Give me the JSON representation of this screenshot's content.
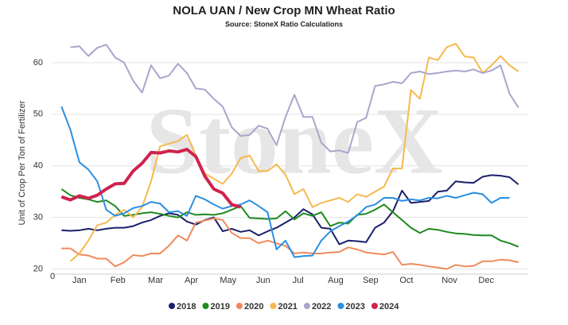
{
  "chart_data": {
    "type": "line",
    "title": "NOLA UAN / New Crop MN Wheat Ratio",
    "subtitle": "Source: StoneX Ratio Calculations",
    "watermark": "StoneX",
    "y_label": "Unit of Crop Per Ton of Fertilizer",
    "x": [
      1,
      2,
      3,
      4,
      5,
      6,
      7,
      8,
      9,
      10,
      11,
      12,
      13,
      14,
      15,
      16,
      17,
      18,
      19,
      20,
      21,
      22,
      23,
      24,
      25,
      26,
      27,
      28,
      29,
      30,
      31,
      32,
      33,
      34,
      35,
      36,
      37,
      38,
      39,
      40,
      41,
      42,
      43,
      44,
      45,
      46,
      47,
      48,
      49,
      50,
      51,
      52
    ],
    "xlim": [
      0,
      53
    ],
    "xticks": [
      0,
      {
        "value": 3,
        "label": "Jan"
      },
      {
        "value": 7.3,
        "label": "Feb"
      },
      {
        "value": 11.5,
        "label": "Mar"
      },
      {
        "value": 15.5,
        "label": "Apr"
      },
      {
        "value": 19.6,
        "label": "May"
      },
      {
        "value": 23.5,
        "label": "Jun"
      },
      {
        "value": 27.4,
        "label": "Jul"
      },
      {
        "value": 31.6,
        "label": "Aug"
      },
      {
        "value": 35.5,
        "label": "Sep"
      },
      {
        "value": 39.5,
        "label": "Oct"
      },
      {
        "value": 44.3,
        "label": "Nov"
      },
      {
        "value": 48.4,
        "label": "Dec"
      }
    ],
    "ylim": [
      19,
      66
    ],
    "yticks": [
      20,
      30,
      40,
      50,
      60
    ],
    "grid": true,
    "legend": "bottom",
    "series": [
      {
        "name": "2018",
        "color": "#1b1f6b",
        "width": 2,
        "values": [
          27.5,
          27.4,
          27.5,
          27.8,
          27.5,
          27.8,
          28,
          28,
          28.3,
          29,
          29.5,
          30.3,
          30.8,
          30.5,
          29.2,
          28.6,
          29.5,
          30,
          27.3,
          27.8,
          27.2,
          27.5,
          26.5,
          27.3,
          28,
          29,
          30,
          31.6,
          30.6,
          28,
          27.8,
          24.8,
          25.5,
          25.4,
          25.2,
          28,
          29,
          31.2,
          35.2,
          32.8,
          33,
          33.2,
          35,
          35.2,
          37,
          36.8,
          36.7,
          37.9,
          38.2,
          38.1,
          37.8,
          36.4
        ]
      },
      {
        "name": "2019",
        "color": "#1e8a1e",
        "width": 2,
        "values": [
          35.5,
          34.3,
          33.8,
          33.5,
          33,
          33.3,
          32.2,
          30.3,
          30.5,
          30.8,
          31,
          30.7,
          30.3,
          30,
          31,
          30.5,
          30.6,
          30.5,
          30.8,
          31.5,
          32.2,
          29.9,
          29.8,
          29.7,
          29.8,
          31.2,
          29.6,
          30.8,
          30.3,
          31,
          28.3,
          29,
          28.8,
          30.5,
          30.7,
          31.5,
          32.5,
          31,
          29.5,
          28,
          27,
          27.8,
          27.6,
          27.2,
          26.9,
          26.8,
          26.6,
          26.5,
          26.5,
          25.5,
          25,
          24.3
        ]
      },
      {
        "name": "2020",
        "color": "#f08a5d",
        "width": 2,
        "values": [
          24,
          24,
          22.8,
          22.6,
          22,
          22,
          20.5,
          21.3,
          22.7,
          22.5,
          23,
          23,
          24.5,
          26.5,
          25.5,
          29,
          29.4,
          29.8,
          29.5,
          27,
          26,
          26,
          25,
          25.5,
          25,
          24.5,
          23,
          23.2,
          23,
          23,
          23.2,
          23.3,
          24.2,
          23.8,
          23.2,
          23,
          22.8,
          23.3,
          20.8,
          21,
          20.8,
          20.5,
          20.3,
          20,
          20.8,
          20.5,
          20.6,
          21.5,
          21.5,
          21.8,
          21.7,
          21.3
        ]
      },
      {
        "name": "2021",
        "color": "#f5b94f",
        "width": 2,
        "values": [
          null,
          21.5,
          23,
          25.5,
          28.5,
          29,
          30.5,
          31.5,
          30,
          32,
          37,
          43.8,
          44.3,
          44.8,
          46,
          42,
          38.5,
          37.5,
          36.5,
          38.5,
          41.5,
          42,
          39,
          39,
          40.3,
          38.3,
          34.5,
          35.5,
          32,
          32.8,
          33.3,
          33.8,
          33,
          34.5,
          34,
          35,
          36,
          39.5,
          39.5,
          54.7,
          53,
          61,
          60.5,
          63,
          63.7,
          61.2,
          61,
          58,
          59.5,
          61.3,
          59.5,
          58.3
        ]
      },
      {
        "name": "2022",
        "color": "#a9a6cc",
        "width": 2,
        "values": [
          null,
          63,
          63.2,
          61.3,
          62.9,
          63.5,
          61,
          60,
          56.5,
          54.2,
          59.5,
          57,
          57.5,
          59.8,
          58,
          55,
          54.8,
          53,
          51.5,
          47.5,
          45.8,
          46,
          47.8,
          47.2,
          44,
          49.5,
          53.8,
          49.5,
          49.5,
          44.5,
          42.8,
          43,
          42.5,
          48.5,
          49.3,
          55.5,
          55.8,
          56.3,
          56,
          58,
          58.3,
          57.8,
          58,
          58.3,
          58.5,
          58.3,
          58.7,
          58,
          58.5,
          59.5,
          54,
          51.3
        ]
      },
      {
        "name": "2023",
        "color": "#2b8fe0",
        "width": 2,
        "values": [
          51.5,
          47,
          40.7,
          39.3,
          37,
          31.5,
          30.3,
          30.8,
          31.8,
          32.2,
          33,
          32.7,
          31,
          31.2,
          30.3,
          34.2,
          33.5,
          32.5,
          31.7,
          32.2,
          32.5,
          33.3,
          32.2,
          31,
          23.8,
          25.5,
          22.3,
          22.5,
          22.6,
          25.5,
          27.3,
          28.3,
          29.2,
          30.4,
          32,
          32.5,
          33.8,
          33.8,
          33.2,
          33.5,
          33.3,
          33.8,
          33.7,
          34.2,
          33.8,
          34.3,
          34.8,
          34.5,
          32.8,
          33.8,
          33.8,
          null
        ]
      },
      {
        "name": "2024",
        "color": "#d0234e",
        "width": 4,
        "values": [
          34,
          33.4,
          34.2,
          33.7,
          34.3,
          35.5,
          36.5,
          36.6,
          39,
          40.5,
          42.6,
          42.5,
          42.9,
          42.7,
          43.2,
          41.8,
          38,
          35.5,
          34.7,
          32.5,
          32,
          null,
          null,
          null,
          null,
          null,
          null,
          null,
          null,
          null,
          null,
          null,
          null,
          null,
          null,
          null,
          null,
          null,
          null,
          null,
          null,
          null,
          null,
          null,
          null,
          null,
          null,
          null,
          null,
          null,
          null,
          null
        ]
      }
    ]
  }
}
